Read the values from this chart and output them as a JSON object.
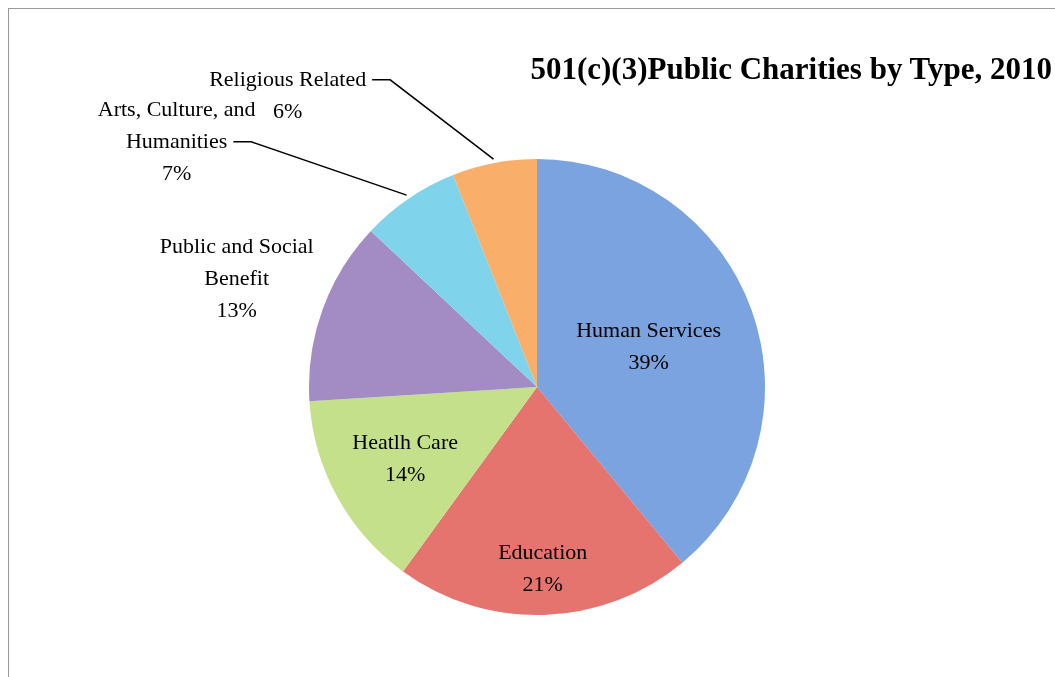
{
  "chart_data": {
    "type": "pie",
    "title": "501(c)(3)Public Charities by Type, 2010",
    "categories": [
      "Human Services",
      "Education",
      "Heatlh Care",
      "Public and Social Benefit",
      "Arts, Culture, and Humanities",
      "Religious Related"
    ],
    "values": [
      39,
      21,
      14,
      13,
      7,
      6
    ],
    "colors": [
      "#7aa3e0",
      "#e5736e",
      "#c5e08a",
      "#a38cc4",
      "#7fd4ec",
      "#f9ae6a"
    ],
    "value_labels": [
      "39%",
      "21%",
      "14%",
      "13%",
      "7%",
      "6%"
    ],
    "legend": false
  }
}
